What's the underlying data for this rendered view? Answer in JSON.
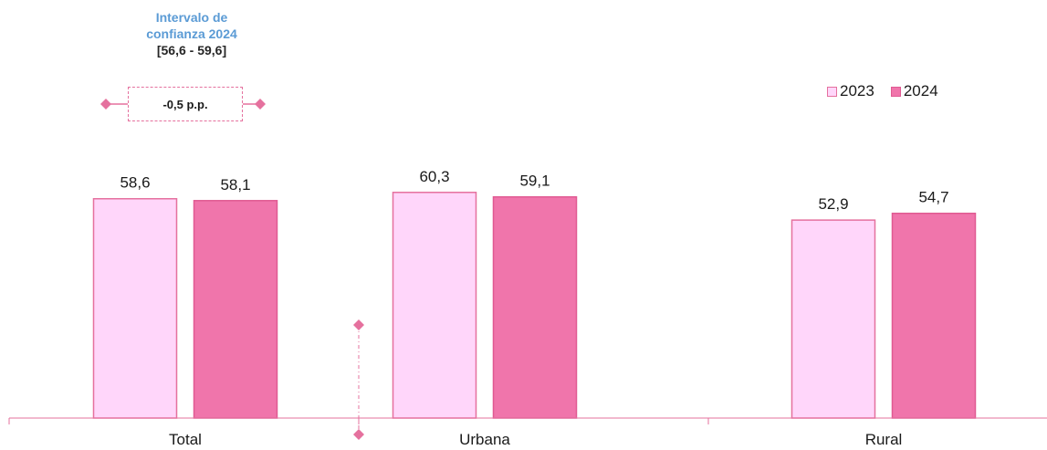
{
  "chart_data": {
    "type": "bar",
    "categories": [
      "Total",
      "Urbana",
      "Rural"
    ],
    "series": [
      {
        "name": "2023",
        "values": [
          58.6,
          60.3,
          52.9
        ],
        "labels": [
          "58,6",
          "60,3",
          "52,9"
        ],
        "color": "#ffd6fa",
        "border": "#e5719e"
      },
      {
        "name": "2024",
        "values": [
          58.1,
          59.1,
          54.7
        ],
        "labels": [
          "58,1",
          "59,1",
          "54,7"
        ],
        "color": "#f075ab",
        "border": "#e05a92"
      }
    ],
    "legend_position": "top-right",
    "grid": false,
    "annotation": {
      "title": "Intervalo de confianza 2024",
      "title_lines": [
        "Intervalo de",
        "confianza 2024"
      ],
      "range": "[56,6 - 59,6]",
      "difference": "-0,5 p.p."
    }
  }
}
